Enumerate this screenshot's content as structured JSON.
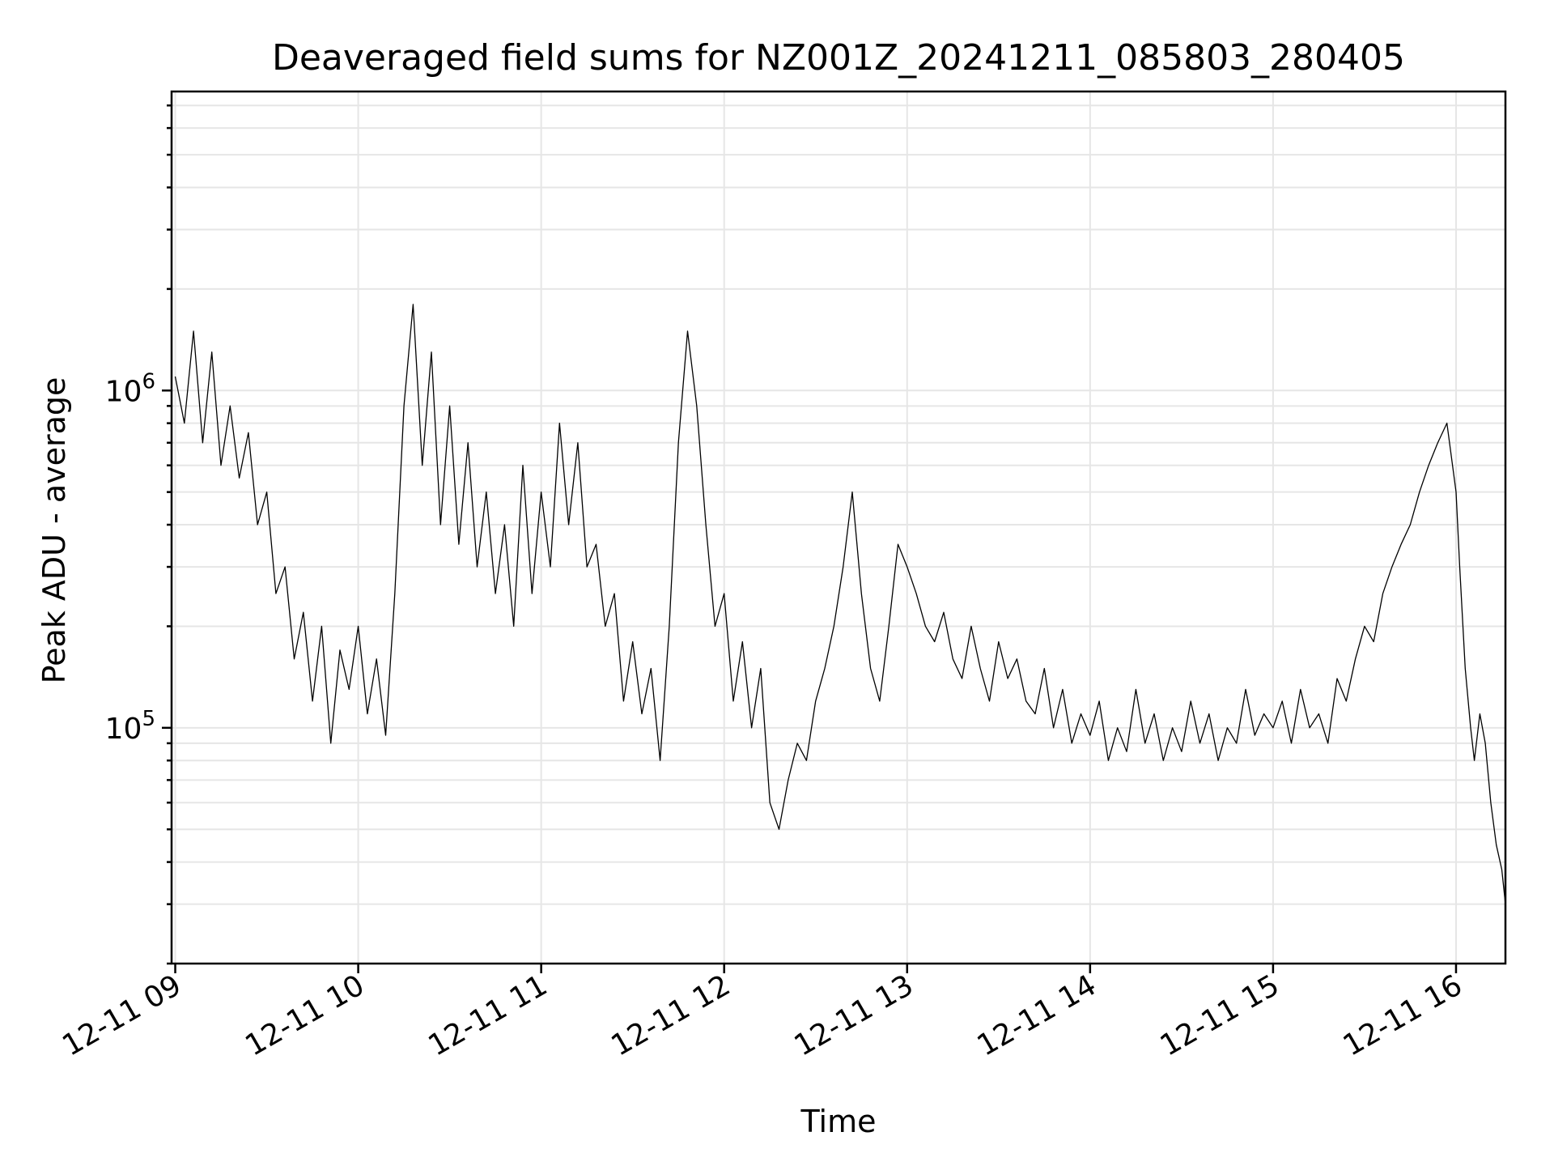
{
  "chart_data": {
    "type": "line",
    "title": "Deaveraged field sums for NZ001Z_20241211_085803_280405",
    "xlabel": "Time",
    "ylabel": "Peak ADU - average",
    "yscale": "log",
    "grid": true,
    "x_tick_labels": [
      "12-11 09",
      "12-11 10",
      "12-11 11",
      "12-11 12",
      "12-11 13",
      "12-11 14",
      "12-11 15",
      "12-11 16"
    ],
    "x_tick_hours": [
      9,
      10,
      11,
      12,
      13,
      14,
      15,
      16
    ],
    "xlim_hours": [
      8.98,
      16.27
    ],
    "ylim": [
      20000,
      7700000
    ],
    "y_major_ticks": [
      {
        "value": 100000,
        "base": "10",
        "exp": "5"
      },
      {
        "value": 1000000,
        "base": "10",
        "exp": "6"
      }
    ],
    "series": [
      {
        "color": "#000000",
        "points": [
          [
            9.0,
            1100000
          ],
          [
            9.05,
            800000
          ],
          [
            9.1,
            1500000
          ],
          [
            9.15,
            700000
          ],
          [
            9.2,
            1300000
          ],
          [
            9.25,
            600000
          ],
          [
            9.3,
            900000
          ],
          [
            9.35,
            550000
          ],
          [
            9.4,
            750000
          ],
          [
            9.45,
            400000
          ],
          [
            9.5,
            500000
          ],
          [
            9.55,
            250000
          ],
          [
            9.6,
            300000
          ],
          [
            9.65,
            160000
          ],
          [
            9.7,
            220000
          ],
          [
            9.75,
            120000
          ],
          [
            9.8,
            200000
          ],
          [
            9.85,
            90000
          ],
          [
            9.9,
            170000
          ],
          [
            9.95,
            130000
          ],
          [
            10.0,
            200000
          ],
          [
            10.05,
            110000
          ],
          [
            10.1,
            160000
          ],
          [
            10.15,
            95000
          ],
          [
            10.2,
            250000
          ],
          [
            10.25,
            900000
          ],
          [
            10.3,
            1800000
          ],
          [
            10.35,
            600000
          ],
          [
            10.4,
            1300000
          ],
          [
            10.45,
            400000
          ],
          [
            10.5,
            900000
          ],
          [
            10.55,
            350000
          ],
          [
            10.6,
            700000
          ],
          [
            10.65,
            300000
          ],
          [
            10.7,
            500000
          ],
          [
            10.75,
            250000
          ],
          [
            10.8,
            400000
          ],
          [
            10.85,
            200000
          ],
          [
            10.9,
            600000
          ],
          [
            10.95,
            250000
          ],
          [
            11.0,
            500000
          ],
          [
            11.05,
            300000
          ],
          [
            11.1,
            800000
          ],
          [
            11.15,
            400000
          ],
          [
            11.2,
            700000
          ],
          [
            11.25,
            300000
          ],
          [
            11.3,
            350000
          ],
          [
            11.35,
            200000
          ],
          [
            11.4,
            250000
          ],
          [
            11.45,
            120000
          ],
          [
            11.5,
            180000
          ],
          [
            11.55,
            110000
          ],
          [
            11.6,
            150000
          ],
          [
            11.65,
            80000
          ],
          [
            11.7,
            200000
          ],
          [
            11.75,
            700000
          ],
          [
            11.8,
            1500000
          ],
          [
            11.85,
            900000
          ],
          [
            11.9,
            400000
          ],
          [
            11.95,
            200000
          ],
          [
            12.0,
            250000
          ],
          [
            12.05,
            120000
          ],
          [
            12.1,
            180000
          ],
          [
            12.15,
            100000
          ],
          [
            12.2,
            150000
          ],
          [
            12.25,
            60000
          ],
          [
            12.3,
            50000
          ],
          [
            12.35,
            70000
          ],
          [
            12.4,
            90000
          ],
          [
            12.45,
            80000
          ],
          [
            12.5,
            120000
          ],
          [
            12.55,
            150000
          ],
          [
            12.6,
            200000
          ],
          [
            12.65,
            300000
          ],
          [
            12.7,
            500000
          ],
          [
            12.75,
            250000
          ],
          [
            12.8,
            150000
          ],
          [
            12.85,
            120000
          ],
          [
            12.9,
            200000
          ],
          [
            12.95,
            350000
          ],
          [
            13.0,
            300000
          ],
          [
            13.05,
            250000
          ],
          [
            13.1,
            200000
          ],
          [
            13.15,
            180000
          ],
          [
            13.2,
            220000
          ],
          [
            13.25,
            160000
          ],
          [
            13.3,
            140000
          ],
          [
            13.35,
            200000
          ],
          [
            13.4,
            150000
          ],
          [
            13.45,
            120000
          ],
          [
            13.5,
            180000
          ],
          [
            13.55,
            140000
          ],
          [
            13.6,
            160000
          ],
          [
            13.65,
            120000
          ],
          [
            13.7,
            110000
          ],
          [
            13.75,
            150000
          ],
          [
            13.8,
            100000
          ],
          [
            13.85,
            130000
          ],
          [
            13.9,
            90000
          ],
          [
            13.95,
            110000
          ],
          [
            14.0,
            95000
          ],
          [
            14.05,
            120000
          ],
          [
            14.1,
            80000
          ],
          [
            14.15,
            100000
          ],
          [
            14.2,
            85000
          ],
          [
            14.25,
            130000
          ],
          [
            14.3,
            90000
          ],
          [
            14.35,
            110000
          ],
          [
            14.4,
            80000
          ],
          [
            14.45,
            100000
          ],
          [
            14.5,
            85000
          ],
          [
            14.55,
            120000
          ],
          [
            14.6,
            90000
          ],
          [
            14.65,
            110000
          ],
          [
            14.7,
            80000
          ],
          [
            14.75,
            100000
          ],
          [
            14.8,
            90000
          ],
          [
            14.85,
            130000
          ],
          [
            14.9,
            95000
          ],
          [
            14.95,
            110000
          ],
          [
            15.0,
            100000
          ],
          [
            15.05,
            120000
          ],
          [
            15.1,
            90000
          ],
          [
            15.15,
            130000
          ],
          [
            15.2,
            100000
          ],
          [
            15.25,
            110000
          ],
          [
            15.3,
            90000
          ],
          [
            15.35,
            140000
          ],
          [
            15.4,
            120000
          ],
          [
            15.45,
            160000
          ],
          [
            15.5,
            200000
          ],
          [
            15.55,
            180000
          ],
          [
            15.6,
            250000
          ],
          [
            15.65,
            300000
          ],
          [
            15.7,
            350000
          ],
          [
            15.75,
            400000
          ],
          [
            15.8,
            500000
          ],
          [
            15.85,
            600000
          ],
          [
            15.9,
            700000
          ],
          [
            15.95,
            800000
          ],
          [
            16.0,
            500000
          ],
          [
            16.02,
            300000
          ],
          [
            16.05,
            150000
          ],
          [
            16.08,
            100000
          ],
          [
            16.1,
            80000
          ],
          [
            16.13,
            110000
          ],
          [
            16.16,
            90000
          ],
          [
            16.19,
            60000
          ],
          [
            16.22,
            45000
          ],
          [
            16.25,
            38000
          ],
          [
            16.27,
            30000
          ]
        ]
      }
    ]
  }
}
